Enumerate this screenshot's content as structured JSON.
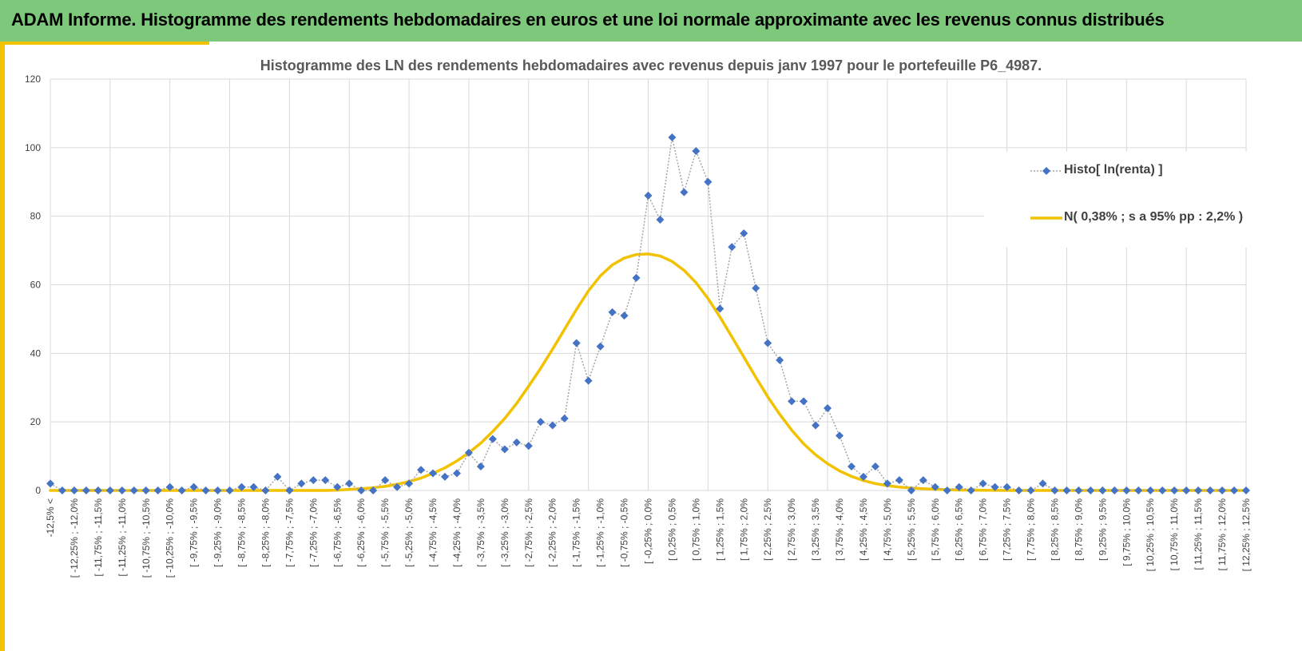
{
  "header": {
    "title": "ADAM Informe. Histogramme des rendements hebdomadaires en euros et une loi normale approximante avec les revenus connus distribués"
  },
  "colors": {
    "header_bg": "#7dc87a",
    "accent": "#f2c200",
    "histo": "#4472c4",
    "normal": "#f2c200",
    "grid": "#d9d9d9"
  },
  "chart_data": {
    "type": "line",
    "title": "Histogramme des LN des rendements hebdomadaires avec revenus depuis janv 1997 pour le portefeuille P6_4987.",
    "xlabel": "",
    "ylabel": "",
    "ylim": [
      0,
      120
    ],
    "yticks": [
      0,
      20,
      40,
      60,
      80,
      100,
      120
    ],
    "grid": true,
    "legend_position": "right",
    "categories": [
      "-12,5% <",
      "[ -12,25% ; -12,0%",
      "[ -11,75% ; -11,5%",
      "[ -11,25% ; -11,0%",
      "[ -10,75% ; -10,5%",
      "[ -10,25% ; -10,0%",
      "[ -9,75% ; -9,5%",
      "[ -9,25% ; -9,0%",
      "[ -8,75% ; -8,5%",
      "[ -8,25% ; -8,0%",
      "[ -7,75% ; -7,5%",
      "[ -7,25% ; -7,0%",
      "[ -6,75% ; -6,5%",
      "[ -6,25% ; -6,0%",
      "[ -5,75% ; -5,5%",
      "[ -5,25% ; -5,0%",
      "[ -4,75% ; -4,5%",
      "[ -4,25% ; -4,0%",
      "[ -3,75% ; -3,5%",
      "[ -3,25% ; -3,0%",
      "[ -2,75% ; -2,5%",
      "[ -2,25% ; -2,0%",
      "[ -1,75% ; -1,5%",
      "[ -1,25% ; -1,0%",
      "[ -0,75% ; -0,5%",
      "[ -0,25% ; 0,0%",
      "[ 0,25% ; 0,5%",
      "[ 0,75% ; 1,0%",
      "[ 1,25% ; 1,5%",
      "[ 1,75% ; 2,0%",
      "[ 2,25% ; 2,5%",
      "[ 2,75% ; 3,0%",
      "[ 3,25% ; 3,5%",
      "[ 3,75% ; 4,0%",
      "[ 4,25% ; 4,5%",
      "[ 4,75% ; 5,0%",
      "[ 5,25% ; 5,5%",
      "[ 5,75% ; 6,0%",
      "[ 6,25% ; 6,5%",
      "[ 6,75% ; 7,0%",
      "[ 7,25% ; 7,5%",
      "[ 7,75% ; 8,0%",
      "[ 8,25% ; 8,5%",
      "[ 8,75% ; 9,0%",
      "[ 9,25% ; 9,5%",
      "[ 9,75% ; 10,0%",
      "[ 10,25% ; 10,5%",
      "[ 10,75% ; 11,0%",
      "[ 11,25% ; 11,5%",
      "[ 11,75% ; 12,0%",
      "[ 12,25% ; 12,5%"
    ],
    "x": [
      -12.5,
      -12.25,
      -12.0,
      -11.75,
      -11.5,
      -11.25,
      -11.0,
      -10.75,
      -10.5,
      -10.25,
      -10.0,
      -9.75,
      -9.5,
      -9.25,
      -9.0,
      -8.75,
      -8.5,
      -8.25,
      -8.0,
      -7.75,
      -7.5,
      -7.25,
      -7.0,
      -6.75,
      -6.5,
      -6.25,
      -6.0,
      -5.75,
      -5.5,
      -5.25,
      -5.0,
      -4.75,
      -4.5,
      -4.25,
      -4.0,
      -3.75,
      -3.5,
      -3.25,
      -3.0,
      -2.75,
      -2.5,
      -2.25,
      -2.0,
      -1.75,
      -1.5,
      -1.25,
      -1.0,
      -0.75,
      -0.5,
      -0.25,
      0.0,
      0.25,
      0.5,
      0.75,
      1.0,
      1.25,
      1.5,
      1.75,
      2.0,
      2.25,
      2.5,
      2.75,
      3.0,
      3.25,
      3.5,
      3.75,
      4.0,
      4.25,
      4.5,
      4.75,
      5.0,
      5.25,
      5.5,
      5.75,
      6.0,
      6.25,
      6.5,
      6.75,
      7.0,
      7.25,
      7.5,
      7.75,
      8.0,
      8.25,
      8.5,
      8.75,
      9.0,
      9.25,
      9.5,
      9.75,
      10.0,
      10.25,
      10.5,
      10.75,
      11.0,
      11.25,
      11.5,
      11.75,
      12.0,
      12.25,
      12.5
    ],
    "series": [
      {
        "name": "Histo[ ln(renta) ]",
        "style": "dotted-line-diamond-markers",
        "color": "#4472c4",
        "values": [
          2,
          0,
          0,
          0,
          0,
          0,
          0,
          0,
          0,
          0,
          1,
          0,
          1,
          0,
          0,
          0,
          1,
          1,
          0,
          4,
          0,
          2,
          3,
          3,
          1,
          2,
          0,
          0,
          3,
          1,
          2,
          6,
          5,
          4,
          5,
          11,
          7,
          15,
          12,
          14,
          13,
          20,
          19,
          21,
          43,
          32,
          42,
          52,
          51,
          62,
          86,
          79,
          103,
          87,
          99,
          90,
          53,
          71,
          75,
          59,
          43,
          38,
          26,
          26,
          19,
          24,
          16,
          7,
          4,
          7,
          2,
          3,
          0,
          3,
          1,
          0,
          1,
          0,
          2,
          1,
          1,
          0,
          0,
          2,
          0,
          0,
          0,
          0,
          0,
          0,
          0,
          0,
          0,
          0,
          0,
          0,
          0,
          0,
          0,
          0,
          0
        ]
      },
      {
        "name": "N( 0,38% ; s a 95% pp : 2,2% )",
        "style": "smooth-line",
        "color": "#f2c200",
        "values": [
          0,
          0,
          0,
          0,
          0,
          0,
          0,
          0,
          0,
          0,
          0,
          0,
          0,
          0,
          0,
          0,
          0,
          0,
          0,
          0,
          0,
          0,
          0,
          0,
          0.1,
          0.3,
          0.5,
          0.8,
          1.2,
          1.8,
          2.6,
          3.6,
          5.0,
          6.6,
          8.6,
          11.0,
          13.8,
          17.2,
          21.0,
          25.4,
          30.4,
          35.6,
          41.2,
          47.0,
          52.8,
          58.2,
          62.6,
          65.8,
          67.8,
          68.8,
          69.0,
          68.4,
          66.8,
          64.2,
          60.6,
          56.0,
          50.6,
          44.8,
          38.9,
          33.0,
          27.3,
          22.2,
          17.6,
          13.6,
          10.4,
          7.8,
          5.7,
          4.1,
          2.9,
          2.0,
          1.4,
          1.0,
          0.7,
          0.5,
          0.35,
          0.2,
          0.12,
          0.08,
          0.05,
          0.03,
          0.01,
          0,
          0,
          0,
          0,
          0,
          0,
          0,
          0,
          0,
          0,
          0,
          0,
          0,
          0,
          0,
          0,
          0,
          0,
          0,
          0
        ]
      }
    ]
  }
}
